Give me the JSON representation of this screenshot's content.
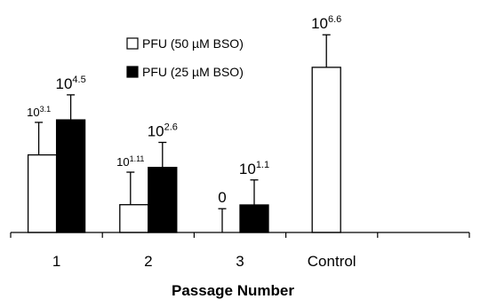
{
  "chart_data": {
    "type": "bar",
    "categories": [
      "1",
      "2",
      "3",
      "Control"
    ],
    "series": [
      {
        "name": "PFU (50 µM BSO)",
        "color": "#ffffff",
        "values": [
          3.1,
          1.11,
          0,
          6.6
        ],
        "error": [
          1.3,
          1.3,
          0.95,
          1.3
        ],
        "labels": [
          {
            "base": "10",
            "exp": "3.1"
          },
          {
            "base": "10",
            "exp": "1.11"
          },
          {
            "base": "0",
            "exp": ""
          },
          {
            "base": "10",
            "exp": "6.6"
          }
        ]
      },
      {
        "name": "PFU (25 µM BSO)",
        "color": "#000000",
        "values": [
          4.5,
          2.6,
          1.1,
          null
        ],
        "error": [
          1.0,
          1.0,
          1.0,
          null
        ],
        "labels": [
          {
            "base": "10",
            "exp": "4.5"
          },
          {
            "base": "10",
            "exp": "2.6"
          },
          {
            "base": "10",
            "exp": "1.1"
          },
          null
        ]
      }
    ],
    "xlabel": "Passage Number",
    "ylabel": "",
    "ylim": [
      0,
      8.6
    ],
    "y_scale_note": "log10 PFU",
    "legend_position": "top-center",
    "grid": false
  }
}
